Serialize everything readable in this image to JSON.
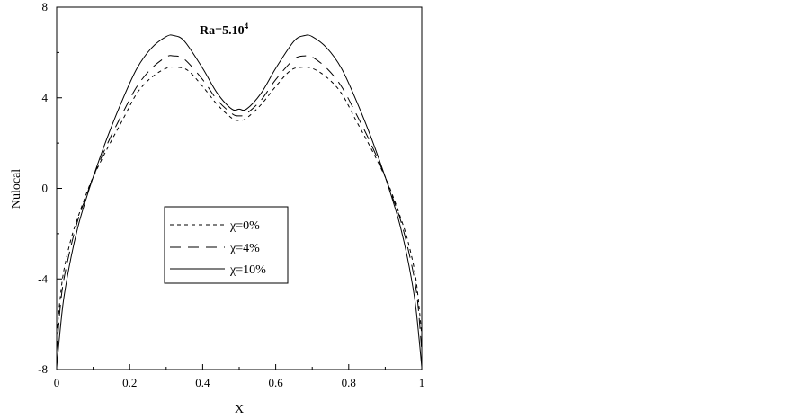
{
  "chart_data": {
    "type": "line",
    "title": "",
    "annotation": "Ra=5.10",
    "annotation_superscript": "4",
    "xlabel": "X",
    "ylabel": "Nulocal",
    "xlim": [
      0,
      1
    ],
    "ylim": [
      -8,
      8
    ],
    "xticks": [
      "0",
      "0.2",
      "0.4",
      "0.6",
      "0.8",
      "1"
    ],
    "yticks": [
      "-8",
      "-4",
      "0",
      "4",
      "8"
    ],
    "grid": false,
    "legend_position": "center-left",
    "series": [
      {
        "name": "χ=0%",
        "style": "dotted",
        "x": [
          0,
          0.01,
          0.02,
          0.04,
          0.06,
          0.08,
          0.1,
          0.14,
          0.18,
          0.22,
          0.26,
          0.3,
          0.33,
          0.36,
          0.4,
          0.44,
          0.48,
          0.5,
          0.52,
          0.56,
          0.6,
          0.64,
          0.67,
          0.7,
          0.74,
          0.78,
          0.82,
          0.86,
          0.9,
          0.92,
          0.94,
          0.96,
          0.98,
          0.99,
          1.0
        ],
        "y": [
          -6.5,
          -4.8,
          -3.6,
          -2.2,
          -1.2,
          -0.3,
          0.5,
          1.8,
          3.0,
          4.2,
          4.9,
          5.3,
          5.35,
          5.2,
          4.5,
          3.7,
          3.1,
          3.0,
          3.1,
          3.7,
          4.5,
          5.2,
          5.35,
          5.3,
          4.9,
          4.2,
          3.0,
          1.8,
          0.5,
          -0.3,
          -1.2,
          -2.2,
          -3.6,
          -4.8,
          -6.5
        ]
      },
      {
        "name": "χ=4%",
        "style": "dashed",
        "x": [
          0,
          0.01,
          0.02,
          0.04,
          0.06,
          0.08,
          0.1,
          0.14,
          0.18,
          0.22,
          0.26,
          0.3,
          0.32,
          0.35,
          0.4,
          0.44,
          0.48,
          0.5,
          0.52,
          0.56,
          0.6,
          0.65,
          0.68,
          0.7,
          0.74,
          0.78,
          0.82,
          0.86,
          0.9,
          0.92,
          0.94,
          0.96,
          0.98,
          0.99,
          1.0
        ],
        "y": [
          -7.2,
          -5.2,
          -4.0,
          -2.5,
          -1.3,
          -0.4,
          0.5,
          2.0,
          3.3,
          4.5,
          5.3,
          5.8,
          5.85,
          5.7,
          4.8,
          3.9,
          3.3,
          3.2,
          3.3,
          3.9,
          4.8,
          5.7,
          5.85,
          5.8,
          5.3,
          4.5,
          3.3,
          2.0,
          0.5,
          -0.4,
          -1.3,
          -2.5,
          -4.0,
          -5.2,
          -7.2
        ]
      },
      {
        "name": "χ=10%",
        "style": "solid",
        "x": [
          0,
          0.01,
          0.02,
          0.04,
          0.06,
          0.08,
          0.1,
          0.14,
          0.18,
          0.22,
          0.26,
          0.3,
          0.32,
          0.35,
          0.4,
          0.44,
          0.48,
          0.5,
          0.52,
          0.56,
          0.6,
          0.65,
          0.68,
          0.7,
          0.74,
          0.78,
          0.82,
          0.86,
          0.9,
          0.92,
          0.94,
          0.96,
          0.98,
          0.99,
          1.0
        ],
        "y": [
          -7.9,
          -6.2,
          -4.8,
          -3.0,
          -1.6,
          -0.5,
          0.5,
          2.3,
          3.9,
          5.3,
          6.2,
          6.7,
          6.75,
          6.5,
          5.3,
          4.2,
          3.5,
          3.5,
          3.5,
          4.2,
          5.3,
          6.5,
          6.75,
          6.7,
          6.2,
          5.3,
          3.9,
          2.3,
          0.5,
          -0.5,
          -1.6,
          -3.0,
          -4.8,
          -6.2,
          -7.9
        ]
      }
    ]
  }
}
